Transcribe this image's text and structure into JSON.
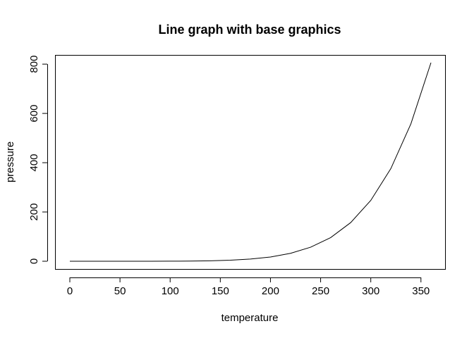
{
  "chart_data": {
    "type": "line",
    "title": "Line graph with base graphics",
    "xlabel": "temperature",
    "ylabel": "pressure",
    "xlim": [
      0,
      360
    ],
    "ylim": [
      0,
      806
    ],
    "x_ticks": [
      0,
      50,
      100,
      150,
      200,
      250,
      300,
      350
    ],
    "y_ticks": [
      0,
      200,
      400,
      600,
      800
    ],
    "grid": false,
    "legend": "none",
    "series": [
      {
        "x": [
          0,
          20,
          40,
          60,
          80,
          100,
          120,
          140,
          160,
          180,
          200,
          220,
          240,
          260,
          280,
          300,
          320,
          340,
          360
        ],
        "y": [
          0.0002,
          0.0012,
          0.006,
          0.03,
          0.09,
          0.27,
          0.75,
          1.85,
          4.2,
          8.8,
          17.3,
          32.1,
          57,
          96,
          157,
          247,
          376,
          558,
          806
        ]
      }
    ]
  }
}
